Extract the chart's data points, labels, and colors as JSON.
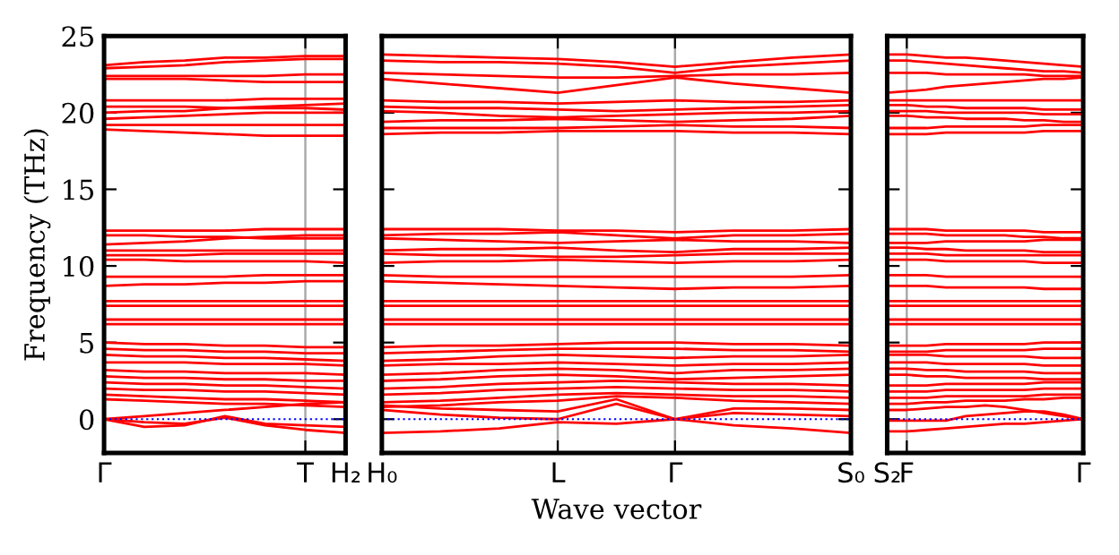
{
  "chart_data": [
    {
      "type": "line",
      "ylabel": "Frequency (THz)",
      "categories": [
        "Γ",
        null,
        null,
        null,
        null,
        "T",
        "H₂"
      ],
      "ylim": [
        -2.2,
        25
      ],
      "yticks": [
        0,
        5,
        10,
        15,
        20,
        25
      ],
      "ref_lines": [
        {
          "axis": "y",
          "value": 0,
          "color": "#0000ff",
          "line_style": "dotted"
        },
        {
          "axis": "x",
          "value": "T",
          "color": "#aaaaaa"
        }
      ],
      "series": [
        {
          "color": "#ff0000",
          "values": [
            23.1,
            23.3,
            23.4,
            23.6,
            23.6,
            23.7,
            23.7
          ]
        },
        {
          "color": "#ff0000",
          "values": [
            22.9,
            23.0,
            23.1,
            23.3,
            23.4,
            23.5,
            23.5
          ]
        },
        {
          "color": "#ff0000",
          "values": [
            22.4,
            22.4,
            22.4,
            22.4,
            22.4,
            22.5,
            22.5
          ]
        },
        {
          "color": "#ff0000",
          "values": [
            22.2,
            22.2,
            22.2,
            22.1,
            22.0,
            22.0,
            22.0
          ]
        },
        {
          "color": "#ff0000",
          "values": [
            20.8,
            20.8,
            20.8,
            20.8,
            20.9,
            20.9,
            20.9
          ]
        },
        {
          "color": "#ff0000",
          "values": [
            20.4,
            20.4,
            20.4,
            20.3,
            20.3,
            20.3,
            20.2
          ]
        },
        {
          "color": "#ff0000",
          "values": [
            20.0,
            20.1,
            20.1,
            20.3,
            20.4,
            20.5,
            20.6
          ]
        },
        {
          "color": "#ff0000",
          "values": [
            19.6,
            19.7,
            19.8,
            19.9,
            20.0,
            20.0,
            20.0
          ]
        },
        {
          "color": "#ff0000",
          "values": [
            19.2,
            19.2,
            19.2,
            19.2,
            19.2,
            19.2,
            19.2
          ]
        },
        {
          "color": "#ff0000",
          "values": [
            18.9,
            18.8,
            18.7,
            18.6,
            18.5,
            18.5,
            18.5
          ]
        },
        {
          "color": "#ff0000",
          "values": [
            12.3,
            12.3,
            12.3,
            12.3,
            12.4,
            12.4,
            12.4
          ]
        },
        {
          "color": "#ff0000",
          "values": [
            12.0,
            12.0,
            11.9,
            11.9,
            11.8,
            11.8,
            11.8
          ]
        },
        {
          "color": "#ff0000",
          "values": [
            11.4,
            11.5,
            11.6,
            11.8,
            11.9,
            12.0,
            12.0
          ]
        },
        {
          "color": "#ff0000",
          "values": [
            11.0,
            11.0,
            11.0,
            11.0,
            11.0,
            11.0,
            11.0
          ]
        },
        {
          "color": "#ff0000",
          "values": [
            10.7,
            10.7,
            10.7,
            10.8,
            10.8,
            10.8,
            10.8
          ]
        },
        {
          "color": "#ff0000",
          "values": [
            10.4,
            10.4,
            10.3,
            10.3,
            10.3,
            10.3,
            10.2
          ]
        },
        {
          "color": "#ff0000",
          "values": [
            9.3,
            9.3,
            9.3,
            9.3,
            9.4,
            9.4,
            9.4
          ]
        },
        {
          "color": "#ff0000",
          "values": [
            8.7,
            8.8,
            8.8,
            8.9,
            8.9,
            9.0,
            9.0
          ]
        },
        {
          "color": "#ff0000",
          "values": [
            7.7,
            7.7,
            7.7,
            7.7,
            7.7,
            7.7,
            7.7
          ]
        },
        {
          "color": "#ff0000",
          "values": [
            7.4,
            7.4,
            7.4,
            7.4,
            7.4,
            7.4,
            7.4
          ]
        },
        {
          "color": "#ff0000",
          "values": [
            6.5,
            6.5,
            6.5,
            6.5,
            6.5,
            6.5,
            6.5
          ]
        },
        {
          "color": "#ff0000",
          "values": [
            6.2,
            6.2,
            6.2,
            6.2,
            6.2,
            6.2,
            6.2
          ]
        },
        {
          "color": "#ff0000",
          "values": [
            5.0,
            4.9,
            4.9,
            4.8,
            4.8,
            4.7,
            4.7
          ]
        },
        {
          "color": "#ff0000",
          "values": [
            4.6,
            4.5,
            4.5,
            4.4,
            4.4,
            4.3,
            4.3
          ]
        },
        {
          "color": "#ff0000",
          "values": [
            4.2,
            4.1,
            4.1,
            4.0,
            4.0,
            3.9,
            3.8
          ]
        },
        {
          "color": "#ff0000",
          "values": [
            3.7,
            3.7,
            3.7,
            3.6,
            3.6,
            3.6,
            3.5
          ]
        },
        {
          "color": "#ff0000",
          "values": [
            3.2,
            3.1,
            3.1,
            3.0,
            3.0,
            3.0,
            2.9
          ]
        },
        {
          "color": "#ff0000",
          "values": [
            2.8,
            2.7,
            2.7,
            2.6,
            2.6,
            2.5,
            2.5
          ]
        },
        {
          "color": "#ff0000",
          "values": [
            2.4,
            2.3,
            2.3,
            2.2,
            2.2,
            2.1,
            2.0
          ]
        },
        {
          "color": "#ff0000",
          "values": [
            2.0,
            1.9,
            1.9,
            1.8,
            1.8,
            1.7,
            1.6
          ]
        },
        {
          "color": "#ff0000",
          "values": [
            1.6,
            1.5,
            1.4,
            1.3,
            1.3,
            1.2,
            1.1
          ]
        },
        {
          "color": "#ff0000",
          "values": [
            1.3,
            1.2,
            1.1,
            1.0,
            1.0,
            0.9,
            0.8
          ]
        },
        {
          "color": "#ff0000",
          "values": [
            0,
            0.2,
            0.4,
            0.6,
            0.8,
            1.0,
            1.1
          ]
        },
        {
          "color": "#ff0000",
          "values": [
            0,
            -0.5,
            -0.4,
            0.2,
            -0.3,
            -0.4,
            -0.5
          ]
        },
        {
          "color": "#ff0000",
          "values": [
            0,
            -0.2,
            -0.3,
            0.1,
            -0.4,
            -0.7,
            -0.9
          ]
        }
      ]
    },
    {
      "type": "line",
      "xlabel": "Wave vector",
      "categories": [
        "H₀",
        null,
        null,
        "L",
        null,
        "Γ",
        null,
        null,
        "S₀"
      ],
      "ylim": [
        -2.2,
        25
      ],
      "yticks": [
        0,
        5,
        10,
        15,
        20,
        25
      ],
      "tick_labels": "x",
      "grid": "x",
      "ref_lines": [
        {
          "axis": "y",
          "value": 0,
          "color": "#0000ff",
          "line_style": "dotted"
        }
      ],
      "series": [
        {
          "color": "#ff0000",
          "values": [
            23.8,
            23.7,
            23.6,
            23.5,
            23.3,
            23.0,
            23.3,
            23.6,
            23.8
          ]
        },
        {
          "color": "#ff0000",
          "values": [
            23.4,
            23.3,
            23.3,
            23.2,
            23.0,
            22.6,
            23.0,
            23.2,
            23.4
          ]
        },
        {
          "color": "#ff0000",
          "values": [
            22.6,
            22.5,
            22.4,
            22.3,
            22.3,
            22.4,
            22.5,
            22.5,
            22.6
          ]
        },
        {
          "color": "#ff0000",
          "values": [
            22.2,
            21.9,
            21.6,
            21.3,
            21.8,
            22.3,
            21.9,
            21.6,
            21.3
          ]
        },
        {
          "color": "#ff0000",
          "values": [
            20.8,
            20.7,
            20.7,
            20.6,
            20.7,
            20.8,
            20.7,
            20.7,
            20.8
          ]
        },
        {
          "color": "#ff0000",
          "values": [
            20.4,
            20.3,
            20.3,
            20.2,
            20.1,
            20.2,
            20.3,
            20.4,
            20.5
          ]
        },
        {
          "color": "#ff0000",
          "values": [
            20.1,
            20.0,
            19.8,
            19.7,
            19.8,
            19.9,
            20.0,
            20.0,
            20.1
          ]
        },
        {
          "color": "#ff0000",
          "values": [
            19.4,
            19.5,
            19.5,
            19.6,
            19.5,
            19.4,
            19.5,
            19.6,
            19.8
          ]
        },
        {
          "color": "#ff0000",
          "values": [
            19.0,
            19.0,
            19.0,
            19.0,
            19.1,
            19.2,
            19.1,
            19.1,
            19.0
          ]
        },
        {
          "color": "#ff0000",
          "values": [
            18.6,
            18.7,
            18.7,
            18.8,
            18.8,
            18.8,
            18.7,
            18.7,
            18.6
          ]
        },
        {
          "color": "#ff0000",
          "values": [
            12.4,
            12.4,
            12.4,
            12.3,
            12.3,
            12.2,
            12.3,
            12.3,
            12.4
          ]
        },
        {
          "color": "#ff0000",
          "values": [
            12.0,
            12.1,
            12.1,
            12.2,
            12.0,
            11.8,
            12.0,
            12.0,
            12.1
          ]
        },
        {
          "color": "#ff0000",
          "values": [
            11.8,
            11.7,
            11.6,
            11.5,
            11.6,
            11.7,
            11.6,
            11.6,
            11.5
          ]
        },
        {
          "color": "#ff0000",
          "values": [
            11.0,
            11.1,
            11.1,
            11.2,
            11.0,
            10.9,
            11.1,
            11.1,
            11.2
          ]
        },
        {
          "color": "#ff0000",
          "values": [
            10.8,
            10.7,
            10.7,
            10.6,
            10.6,
            10.7,
            10.8,
            10.8,
            10.8
          ]
        },
        {
          "color": "#ff0000",
          "values": [
            10.2,
            10.3,
            10.3,
            10.4,
            10.3,
            10.2,
            10.3,
            10.3,
            10.4
          ]
        },
        {
          "color": "#ff0000",
          "values": [
            9.4,
            9.3,
            9.3,
            9.3,
            9.3,
            9.3,
            9.3,
            9.3,
            9.4
          ]
        },
        {
          "color": "#ff0000",
          "values": [
            9.0,
            8.9,
            8.8,
            8.7,
            8.6,
            8.5,
            8.6,
            8.6,
            8.7
          ]
        },
        {
          "color": "#ff0000",
          "values": [
            7.7,
            7.7,
            7.7,
            7.7,
            7.7,
            7.7,
            7.7,
            7.7,
            7.7
          ]
        },
        {
          "color": "#ff0000",
          "values": [
            7.4,
            7.4,
            7.4,
            7.4,
            7.4,
            7.4,
            7.4,
            7.4,
            7.4
          ]
        },
        {
          "color": "#ff0000",
          "values": [
            6.5,
            6.5,
            6.5,
            6.5,
            6.5,
            6.5,
            6.5,
            6.5,
            6.5
          ]
        },
        {
          "color": "#ff0000",
          "values": [
            6.2,
            6.2,
            6.2,
            6.2,
            6.2,
            6.2,
            6.2,
            6.2,
            6.2
          ]
        },
        {
          "color": "#ff0000",
          "values": [
            4.7,
            4.8,
            4.8,
            4.9,
            5.0,
            5.0,
            4.9,
            4.9,
            4.8
          ]
        },
        {
          "color": "#ff0000",
          "values": [
            4.3,
            4.4,
            4.5,
            4.6,
            4.6,
            4.6,
            4.5,
            4.5,
            4.4
          ]
        },
        {
          "color": "#ff0000",
          "values": [
            3.8,
            3.9,
            4.1,
            4.2,
            4.1,
            4.0,
            4.1,
            4.1,
            4.2
          ]
        },
        {
          "color": "#ff0000",
          "values": [
            3.5,
            3.6,
            3.6,
            3.7,
            3.6,
            3.5,
            3.6,
            3.6,
            3.7
          ]
        },
        {
          "color": "#ff0000",
          "values": [
            2.9,
            3.0,
            3.2,
            3.3,
            3.2,
            3.0,
            3.2,
            3.2,
            3.3
          ]
        },
        {
          "color": "#ff0000",
          "values": [
            2.5,
            2.6,
            2.8,
            2.9,
            2.8,
            2.6,
            2.7,
            2.8,
            2.9
          ]
        },
        {
          "color": "#ff0000",
          "values": [
            2.0,
            2.1,
            2.3,
            2.4,
            2.5,
            2.4,
            2.3,
            2.3,
            2.2
          ]
        },
        {
          "color": "#ff0000",
          "values": [
            1.6,
            1.7,
            1.9,
            2.0,
            2.1,
            2.0,
            1.9,
            1.9,
            1.8
          ]
        },
        {
          "color": "#ff0000",
          "values": [
            1.1,
            1.2,
            1.4,
            1.6,
            1.7,
            1.6,
            1.5,
            1.5,
            1.4
          ]
        },
        {
          "color": "#ff0000",
          "values": [
            0.8,
            0.9,
            1.1,
            1.2,
            1.5,
            1.4,
            1.2,
            1.1,
            1.0
          ]
        },
        {
          "color": "#ff0000",
          "values": [
            -0.9,
            -0.8,
            -0.6,
            -0.2,
            -0.3,
            0,
            -0.4,
            -0.6,
            -0.9
          ]
        },
        {
          "color": "#ff0000",
          "values": [
            0.6,
            0.3,
            0.1,
            0,
            1.0,
            0,
            0.4,
            0.3,
            0.2
          ]
        },
        {
          "color": "#ff0000",
          "values": [
            0.9,
            0.7,
            0.6,
            0.5,
            1.3,
            0,
            0.7,
            0.7,
            0.6
          ]
        }
      ]
    },
    {
      "type": "line",
      "categories": [
        "S₂",
        "F",
        null,
        null,
        null,
        null,
        null,
        null,
        null,
        null,
        "Γ"
      ],
      "ylim": [
        -2.2,
        25
      ],
      "yticks": [
        {
          "value": 0,
          "label": null
        },
        {
          "value": 5,
          "label": null
        },
        {
          "value": 10,
          "label": null
        },
        {
          "value": 15,
          "label": null
        },
        {
          "value": 20,
          "label": null
        },
        {
          "value": 25,
          "label": null
        }
      ],
      "tick_labels": "x",
      "ref_lines": [
        {
          "axis": "y",
          "value": 0,
          "color": "#0000ff",
          "line_style": "dotted"
        },
        {
          "axis": "x",
          "value": "F",
          "color": "#aaaaaa"
        }
      ],
      "series": [
        {
          "color": "#ff0000",
          "values": [
            23.8,
            23.8,
            23.7,
            23.6,
            23.6,
            23.5,
            23.4,
            23.3,
            23.2,
            23.1,
            23.0
          ]
        },
        {
          "color": "#ff0000",
          "values": [
            23.4,
            23.4,
            23.3,
            23.2,
            23.1,
            23.0,
            22.9,
            22.8,
            22.7,
            22.7,
            22.6
          ]
        },
        {
          "color": "#ff0000",
          "values": [
            22.6,
            22.6,
            22.6,
            22.5,
            22.5,
            22.5,
            22.5,
            22.5,
            22.4,
            22.4,
            22.4
          ]
        },
        {
          "color": "#ff0000",
          "values": [
            21.3,
            21.4,
            21.5,
            21.7,
            21.8,
            21.9,
            22.0,
            22.1,
            22.2,
            22.2,
            22.3
          ]
        },
        {
          "color": "#ff0000",
          "values": [
            20.8,
            20.8,
            20.8,
            20.8,
            20.8,
            20.8,
            20.8,
            20.8,
            20.8,
            20.8,
            20.8
          ]
        },
        {
          "color": "#ff0000",
          "values": [
            20.5,
            20.5,
            20.4,
            20.4,
            20.3,
            20.3,
            20.3,
            20.3,
            20.2,
            20.2,
            20.2
          ]
        },
        {
          "color": "#ff0000",
          "values": [
            20.1,
            20.1,
            20.1,
            20.0,
            20.0,
            20.0,
            20.0,
            20.0,
            19.9,
            19.9,
            19.9
          ]
        },
        {
          "color": "#ff0000",
          "values": [
            19.8,
            19.8,
            19.7,
            19.7,
            19.6,
            19.6,
            19.6,
            19.5,
            19.5,
            19.4,
            19.4
          ]
        },
        {
          "color": "#ff0000",
          "values": [
            19.0,
            19.0,
            19.0,
            19.1,
            19.1,
            19.1,
            19.1,
            19.1,
            19.2,
            19.2,
            19.2
          ]
        },
        {
          "color": "#ff0000",
          "values": [
            18.6,
            18.6,
            18.6,
            18.7,
            18.7,
            18.7,
            18.7,
            18.7,
            18.8,
            18.8,
            18.8
          ]
        },
        {
          "color": "#ff0000",
          "values": [
            12.4,
            12.4,
            12.4,
            12.3,
            12.3,
            12.3,
            12.3,
            12.3,
            12.2,
            12.2,
            12.2
          ]
        },
        {
          "color": "#ff0000",
          "values": [
            12.1,
            12.1,
            12.1,
            12.0,
            12.0,
            12.0,
            12.0,
            11.9,
            11.9,
            11.8,
            11.8
          ]
        },
        {
          "color": "#ff0000",
          "values": [
            11.5,
            11.5,
            11.5,
            11.6,
            11.6,
            11.6,
            11.6,
            11.6,
            11.7,
            11.7,
            11.7
          ]
        },
        {
          "color": "#ff0000",
          "values": [
            11.2,
            11.2,
            11.1,
            11.1,
            11.0,
            11.0,
            11.0,
            11.0,
            10.9,
            10.9,
            10.9
          ]
        },
        {
          "color": "#ff0000",
          "values": [
            10.8,
            10.8,
            10.8,
            10.7,
            10.7,
            10.7,
            10.7,
            10.7,
            10.7,
            10.7,
            10.7
          ]
        },
        {
          "color": "#ff0000",
          "values": [
            10.4,
            10.4,
            10.4,
            10.3,
            10.3,
            10.3,
            10.3,
            10.3,
            10.2,
            10.2,
            10.2
          ]
        },
        {
          "color": "#ff0000",
          "values": [
            9.4,
            9.4,
            9.4,
            9.3,
            9.3,
            9.3,
            9.3,
            9.3,
            9.3,
            9.3,
            9.3
          ]
        },
        {
          "color": "#ff0000",
          "values": [
            8.7,
            8.7,
            8.7,
            8.6,
            8.6,
            8.6,
            8.6,
            8.6,
            8.5,
            8.5,
            8.5
          ]
        },
        {
          "color": "#ff0000",
          "values": [
            7.7,
            7.7,
            7.7,
            7.7,
            7.7,
            7.7,
            7.7,
            7.7,
            7.7,
            7.7,
            7.7
          ]
        },
        {
          "color": "#ff0000",
          "values": [
            7.4,
            7.4,
            7.4,
            7.4,
            7.4,
            7.4,
            7.4,
            7.4,
            7.4,
            7.4,
            7.4
          ]
        },
        {
          "color": "#ff0000",
          "values": [
            6.5,
            6.5,
            6.5,
            6.5,
            6.5,
            6.5,
            6.5,
            6.5,
            6.5,
            6.5,
            6.5
          ]
        },
        {
          "color": "#ff0000",
          "values": [
            6.2,
            6.2,
            6.2,
            6.2,
            6.2,
            6.2,
            6.2,
            6.2,
            6.2,
            6.2,
            6.2
          ]
        },
        {
          "color": "#ff0000",
          "values": [
            4.8,
            4.8,
            4.8,
            4.9,
            4.9,
            4.9,
            4.9,
            4.9,
            5.0,
            5.0,
            5.0
          ]
        },
        {
          "color": "#ff0000",
          "values": [
            4.4,
            4.4,
            4.4,
            4.5,
            4.5,
            4.5,
            4.5,
            4.5,
            4.6,
            4.6,
            4.6
          ]
        },
        {
          "color": "#ff0000",
          "values": [
            4.2,
            4.2,
            4.2,
            4.1,
            4.1,
            4.1,
            4.1,
            4.1,
            4.0,
            4.0,
            4.0
          ]
        },
        {
          "color": "#ff0000",
          "values": [
            3.7,
            3.7,
            3.7,
            3.6,
            3.6,
            3.6,
            3.6,
            3.6,
            3.5,
            3.5,
            3.5
          ]
        },
        {
          "color": "#ff0000",
          "values": [
            3.3,
            3.3,
            3.2,
            3.2,
            3.1,
            3.1,
            3.1,
            3.1,
            3.0,
            3.0,
            3.0
          ]
        },
        {
          "color": "#ff0000",
          "values": [
            2.9,
            2.9,
            2.8,
            2.8,
            2.7,
            2.7,
            2.7,
            2.7,
            2.6,
            2.6,
            2.6
          ]
        },
        {
          "color": "#ff0000",
          "values": [
            2.2,
            2.2,
            2.2,
            2.3,
            2.3,
            2.3,
            2.3,
            2.3,
            2.4,
            2.4,
            2.4
          ]
        },
        {
          "color": "#ff0000",
          "values": [
            1.8,
            1.8,
            1.8,
            1.9,
            1.9,
            1.9,
            1.9,
            1.9,
            2.0,
            2.0,
            2.0
          ]
        },
        {
          "color": "#ff0000",
          "values": [
            1.4,
            1.4,
            1.4,
            1.5,
            1.5,
            1.5,
            1.5,
            1.5,
            1.6,
            1.6,
            1.6
          ]
        },
        {
          "color": "#ff0000",
          "values": [
            1.0,
            1.0,
            1.1,
            1.1,
            1.2,
            1.2,
            1.2,
            1.3,
            1.3,
            1.4,
            1.4
          ]
        },
        {
          "color": "#ff0000",
          "values": [
            -0.8,
            -0.8,
            -0.7,
            -0.6,
            -0.5,
            -0.4,
            -0.3,
            -0.3,
            -0.2,
            -0.1,
            0
          ]
        },
        {
          "color": "#ff0000",
          "values": [
            -0.1,
            -0.1,
            -0.1,
            -0.1,
            0.2,
            0.3,
            0.4,
            0.5,
            0.5,
            0.3,
            0
          ]
        },
        {
          "color": "#ff0000",
          "values": [
            0.6,
            0.6,
            0.7,
            0.8,
            0.8,
            0.9,
            0.8,
            0.6,
            0.4,
            0.2,
            0
          ]
        }
      ]
    }
  ]
}
